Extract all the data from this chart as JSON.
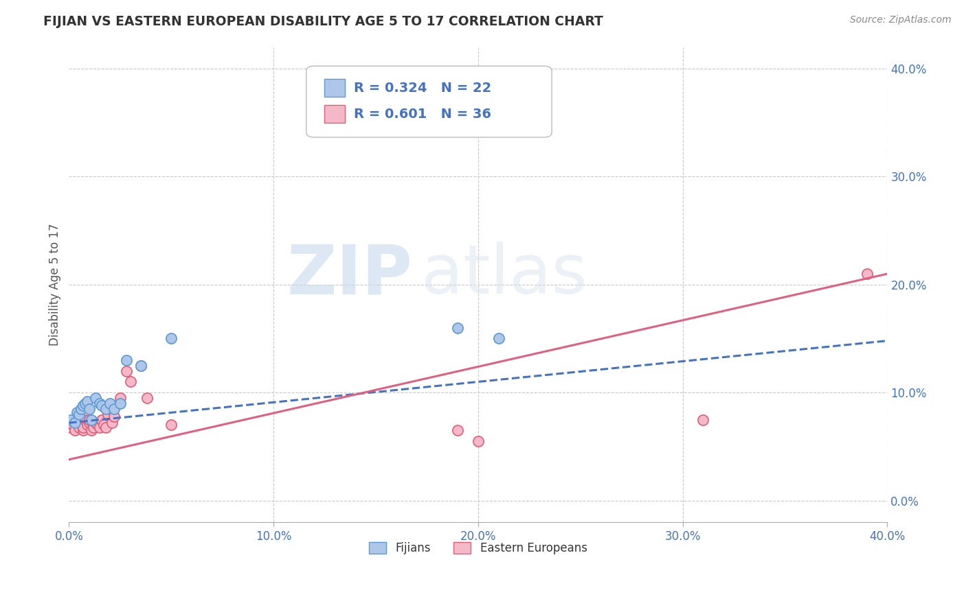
{
  "title": "FIJIAN VS EASTERN EUROPEAN DISABILITY AGE 5 TO 17 CORRELATION CHART",
  "source": "Source: ZipAtlas.com",
  "ylabel": "Disability Age 5 to 17",
  "xlim": [
    0.0,
    0.4
  ],
  "ylim": [
    -0.02,
    0.42
  ],
  "x_ticks": [
    0.0,
    0.1,
    0.2,
    0.3,
    0.4
  ],
  "x_tick_labels": [
    "0.0%",
    "10.0%",
    "20.0%",
    "30.0%",
    "40.0%"
  ],
  "y_ticks": [
    0.0,
    0.1,
    0.2,
    0.3,
    0.4
  ],
  "y_tick_labels": [
    "0.0%",
    "10.0%",
    "20.0%",
    "30.0%",
    "40.0%"
  ],
  "fijian_color": "#aec6e8",
  "eastern_color": "#f4b8c8",
  "fijian_edge": "#5b9bd5",
  "eastern_edge": "#e0607a",
  "trend_fijian_color": "#4472c4",
  "trend_eastern_color": "#e06080",
  "r_fijian": 0.324,
  "n_fijian": 22,
  "r_eastern": 0.601,
  "n_eastern": 36,
  "legend_label_fijian": "Fijians",
  "legend_label_eastern": "Eastern Europeans",
  "background_color": "#ffffff",
  "grid_color": "#c8c8c8",
  "title_color": "#333333",
  "source_color": "#888888",
  "tick_color": "#4472c4",
  "ylabel_color": "#555555",
  "fijian_scatter_x": [
    0.001,
    0.003,
    0.004,
    0.005,
    0.006,
    0.007,
    0.008,
    0.009,
    0.01,
    0.011,
    0.013,
    0.015,
    0.016,
    0.018,
    0.02,
    0.022,
    0.025,
    0.028,
    0.035,
    0.05,
    0.19,
    0.21
  ],
  "fijian_scatter_y": [
    0.075,
    0.072,
    0.082,
    0.08,
    0.085,
    0.088,
    0.09,
    0.092,
    0.085,
    0.075,
    0.095,
    0.09,
    0.088,
    0.085,
    0.09,
    0.085,
    0.09,
    0.13,
    0.125,
    0.15,
    0.16,
    0.15
  ],
  "eastern_scatter_x": [
    0.0,
    0.001,
    0.002,
    0.003,
    0.004,
    0.005,
    0.005,
    0.006,
    0.007,
    0.007,
    0.008,
    0.009,
    0.01,
    0.01,
    0.011,
    0.012,
    0.013,
    0.014,
    0.015,
    0.016,
    0.017,
    0.018,
    0.019,
    0.02,
    0.021,
    0.022,
    0.025,
    0.028,
    0.03,
    0.035,
    0.038,
    0.05,
    0.19,
    0.2,
    0.31,
    0.39
  ],
  "eastern_scatter_y": [
    0.072,
    0.068,
    0.07,
    0.065,
    0.075,
    0.07,
    0.068,
    0.072,
    0.065,
    0.068,
    0.075,
    0.07,
    0.072,
    0.075,
    0.065,
    0.068,
    0.072,
    0.07,
    0.068,
    0.075,
    0.07,
    0.068,
    0.08,
    0.085,
    0.072,
    0.078,
    0.095,
    0.12,
    0.11,
    0.125,
    0.095,
    0.07,
    0.065,
    0.055,
    0.075,
    0.21
  ],
  "trend_fijian_x0": 0.0,
  "trend_fijian_y0": 0.072,
  "trend_fijian_x1": 0.4,
  "trend_fijian_y1": 0.148,
  "trend_eastern_x0": 0.0,
  "trend_eastern_y0": 0.038,
  "trend_eastern_x1": 0.4,
  "trend_eastern_y1": 0.21
}
